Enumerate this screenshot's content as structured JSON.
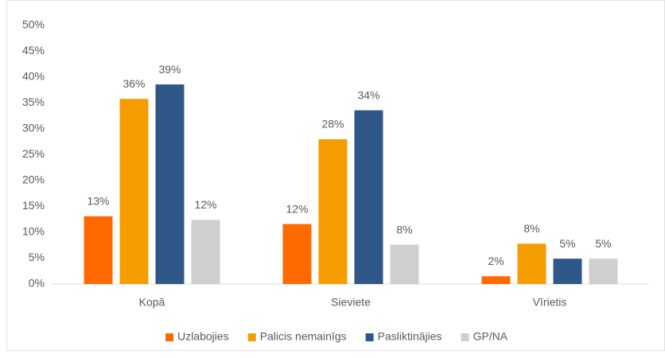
{
  "chart_data": {
    "type": "bar",
    "categories": [
      "Kopā",
      "Sieviete",
      "Vīrietis"
    ],
    "series": [
      {
        "name": "Uzlabojies",
        "color": "#ff6a00",
        "values": [
          13.1,
          11.6,
          1.5
        ],
        "value_labels": [
          "13%",
          "12%",
          "2%"
        ]
      },
      {
        "name": "Palicis nemainīgs",
        "color": "#f59d00",
        "values": [
          35.8,
          28,
          7.8
        ],
        "value_labels": [
          "36%",
          "28%",
          "8%"
        ]
      },
      {
        "name": "Pasliktinājies",
        "color": "#2f5787",
        "values": [
          38.6,
          33.6,
          4.9
        ],
        "value_labels": [
          "39%",
          "34%",
          "5%"
        ]
      },
      {
        "name": "GP/NA",
        "color": "#d0cece",
        "values": [
          12.4,
          7.6,
          4.9
        ],
        "value_labels": [
          "12%",
          "8%",
          "5%"
        ]
      }
    ],
    "ylim": [
      0,
      50
    ],
    "yticks": [
      {
        "value": 0,
        "label": "0%"
      },
      {
        "value": 5,
        "label": "5%"
      },
      {
        "value": 10,
        "label": "10%"
      },
      {
        "value": 15,
        "label": "15%"
      },
      {
        "value": 20,
        "label": "20%"
      },
      {
        "value": 25,
        "label": "25%"
      },
      {
        "value": 30,
        "label": "30%"
      },
      {
        "value": 35,
        "label": "35%"
      },
      {
        "value": 40,
        "label": "40%"
      },
      {
        "value": 45,
        "label": "45%"
      },
      {
        "value": 50,
        "label": "50%"
      }
    ],
    "grid": false,
    "legend": "bottom"
  }
}
